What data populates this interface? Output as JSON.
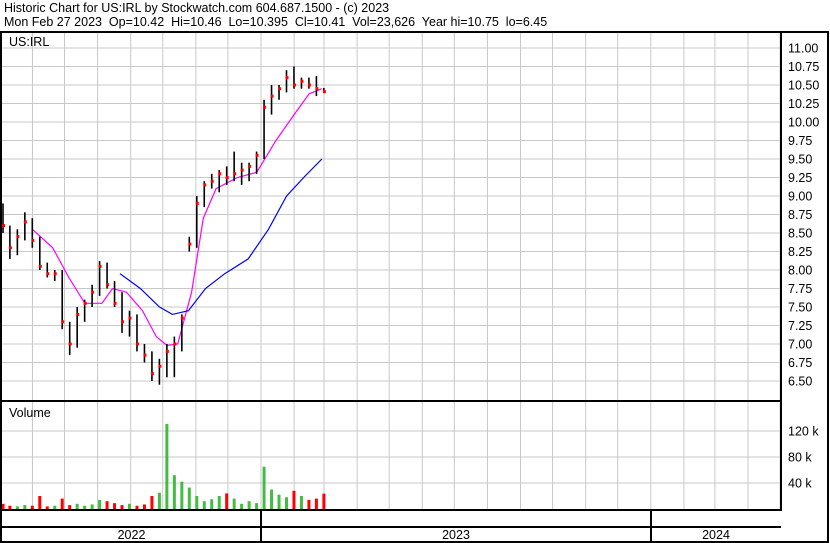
{
  "header": {
    "title": "Historic Chart for US:IRL by Stockwatch.com 604.687.1500 - (c) 2023",
    "quote": "Mon Feb 27 2023  Op=10.42  Hi=10.46  Lo=10.395  Cl=10.41  Vol=23,626  Year hi=10.75  lo=6.45"
  },
  "chart_data": [
    {
      "type": "ohlc",
      "title": "US:IRL",
      "ylim": [
        6.25,
        11.25
      ],
      "yticks": [
        "11.00",
        "10.75",
        "10.50",
        "10.25",
        "10.00",
        "9.75",
        "9.50",
        "9.25",
        "9.00",
        "8.75",
        "8.50",
        "8.25",
        "8.00",
        "7.75",
        "7.50",
        "7.25",
        "7.00",
        "6.75",
        "6.50"
      ],
      "grid": true,
      "colors": {
        "bar": "#000000",
        "close": "#ff0000",
        "ma_short": "#ff00ff",
        "ma_long": "#0000ff",
        "grid": "#c8c8c8"
      },
      "bars": [
        [
          "2022-05-02",
          8.9,
          8.9,
          8.5,
          8.6
        ],
        [
          "2022-05-09",
          8.6,
          8.6,
          8.15,
          8.3
        ],
        [
          "2022-05-16",
          8.3,
          8.55,
          8.2,
          8.45
        ],
        [
          "2022-05-23",
          8.45,
          8.78,
          8.4,
          8.65
        ],
        [
          "2022-05-30",
          8.65,
          8.7,
          8.3,
          8.4
        ],
        [
          "2022-06-06",
          8.4,
          8.45,
          8.0,
          8.05
        ],
        [
          "2022-06-13",
          8.05,
          8.1,
          7.9,
          7.95
        ],
        [
          "2022-06-20",
          7.95,
          8.0,
          7.85,
          7.95
        ],
        [
          "2022-06-27",
          7.95,
          8.0,
          7.2,
          7.3
        ],
        [
          "2022-07-04",
          7.3,
          7.3,
          6.85,
          7.0
        ],
        [
          "2022-07-11",
          7.0,
          7.5,
          6.95,
          7.4
        ],
        [
          "2022-07-18",
          7.4,
          7.6,
          7.3,
          7.55
        ],
        [
          "2022-07-25",
          7.55,
          7.8,
          7.5,
          7.7
        ],
        [
          "2022-08-01",
          7.7,
          8.12,
          7.65,
          8.05
        ],
        [
          "2022-08-08",
          8.05,
          8.1,
          7.75,
          7.8
        ],
        [
          "2022-08-15",
          7.8,
          7.85,
          7.5,
          7.55
        ],
        [
          "2022-08-22",
          7.55,
          7.7,
          7.15,
          7.3
        ],
        [
          "2022-08-29",
          7.3,
          7.45,
          7.1,
          7.35
        ],
        [
          "2022-09-05",
          7.35,
          7.4,
          6.9,
          7.0
        ],
        [
          "2022-09-12",
          7.0,
          7.0,
          6.75,
          6.85
        ],
        [
          "2022-09-19",
          6.85,
          6.9,
          6.5,
          6.6
        ],
        [
          "2022-09-26",
          6.6,
          6.8,
          6.45,
          6.7
        ],
        [
          "2022-10-03",
          6.7,
          7.0,
          6.55,
          6.9
        ],
        [
          "2022-10-10",
          6.9,
          7.1,
          6.55,
          7.0
        ],
        [
          "2022-10-17",
          7.0,
          7.4,
          6.9,
          7.35
        ],
        [
          "2022-10-24",
          8.3,
          8.45,
          8.25,
          8.35
        ],
        [
          "2022-10-31",
          8.35,
          9.0,
          8.3,
          8.9
        ],
        [
          "2022-11-07",
          8.9,
          9.2,
          8.85,
          9.15
        ],
        [
          "2022-11-14",
          9.15,
          9.3,
          9.1,
          9.2
        ],
        [
          "2022-11-21",
          9.2,
          9.35,
          9.05,
          9.3
        ],
        [
          "2022-11-28",
          9.3,
          9.4,
          9.15,
          9.25
        ],
        [
          "2022-12-05",
          9.25,
          9.6,
          9.2,
          9.3
        ],
        [
          "2022-12-12",
          9.3,
          9.45,
          9.15,
          9.35
        ],
        [
          "2022-12-19",
          9.35,
          9.45,
          9.2,
          9.4
        ],
        [
          "2022-12-26",
          9.4,
          9.6,
          9.3,
          9.55
        ],
        [
          "2023-01-02",
          9.55,
          10.3,
          9.5,
          10.2
        ],
        [
          "2023-01-09",
          10.2,
          10.5,
          10.1,
          10.35
        ],
        [
          "2023-01-16",
          10.35,
          10.5,
          10.3,
          10.45
        ],
        [
          "2023-01-23",
          10.45,
          10.7,
          10.4,
          10.6
        ],
        [
          "2023-01-30",
          10.6,
          10.75,
          10.45,
          10.5
        ],
        [
          "2023-02-06",
          10.5,
          10.6,
          10.45,
          10.55
        ],
        [
          "2023-02-13",
          10.55,
          10.6,
          10.45,
          10.5
        ],
        [
          "2023-02-20",
          10.5,
          10.62,
          10.35,
          10.45
        ],
        [
          "2023-02-27",
          10.42,
          10.46,
          10.395,
          10.41
        ]
      ],
      "ma_short": [
        [
          "2022-06-01",
          8.55
        ],
        [
          "2022-06-20",
          8.3
        ],
        [
          "2022-07-05",
          7.9
        ],
        [
          "2022-07-20",
          7.55
        ],
        [
          "2022-08-05",
          7.55
        ],
        [
          "2022-08-15",
          7.75
        ],
        [
          "2022-08-28",
          7.7
        ],
        [
          "2022-09-12",
          7.45
        ],
        [
          "2022-09-25",
          7.1
        ],
        [
          "2022-10-05",
          6.98
        ],
        [
          "2022-10-15",
          7.0
        ],
        [
          "2022-10-28",
          7.7
        ],
        [
          "2022-11-08",
          8.7
        ],
        [
          "2022-11-20",
          9.1
        ],
        [
          "2022-12-10",
          9.25
        ],
        [
          "2022-12-28",
          9.32
        ],
        [
          "2023-01-15",
          9.75
        ],
        [
          "2023-02-01",
          10.1
        ],
        [
          "2023-02-15",
          10.38
        ],
        [
          "2023-02-27",
          10.45
        ]
      ],
      "ma_long": [
        [
          "2022-08-22",
          7.95
        ],
        [
          "2022-09-10",
          7.75
        ],
        [
          "2022-09-28",
          7.5
        ],
        [
          "2022-10-10",
          7.4
        ],
        [
          "2022-10-25",
          7.45
        ],
        [
          "2022-11-10",
          7.75
        ],
        [
          "2022-11-28",
          7.95
        ],
        [
          "2022-12-20",
          8.15
        ],
        [
          "2023-01-08",
          8.55
        ],
        [
          "2023-01-25",
          9.0
        ],
        [
          "2023-02-10",
          9.25
        ],
        [
          "2023-02-27",
          9.5
        ]
      ]
    },
    {
      "type": "bar",
      "title": "Volume",
      "ylim": [
        0,
        160000
      ],
      "yticks": [
        {
          "v": 120000,
          "label": "120 k"
        },
        {
          "v": 80000,
          "label": "80 k"
        },
        {
          "v": 40000,
          "label": "40 k"
        }
      ],
      "colors": {
        "up": "#44bb44",
        "down": "#ff0000"
      },
      "values": [
        8000,
        5000,
        4000,
        6000,
        5000,
        20000,
        4000,
        5000,
        16000,
        6000,
        8000,
        5000,
        7000,
        14000,
        12000,
        9000,
        6000,
        8000,
        5000,
        7000,
        20000,
        25000,
        131000,
        52000,
        42000,
        33000,
        20000,
        12000,
        15000,
        20000,
        24000,
        16000,
        8000,
        12000,
        9000,
        65000,
        30000,
        22000,
        18000,
        28000,
        20000,
        14000,
        16000,
        23626
      ]
    }
  ],
  "time_axis": {
    "years": [
      "2022",
      "2023",
      "2024"
    ]
  }
}
